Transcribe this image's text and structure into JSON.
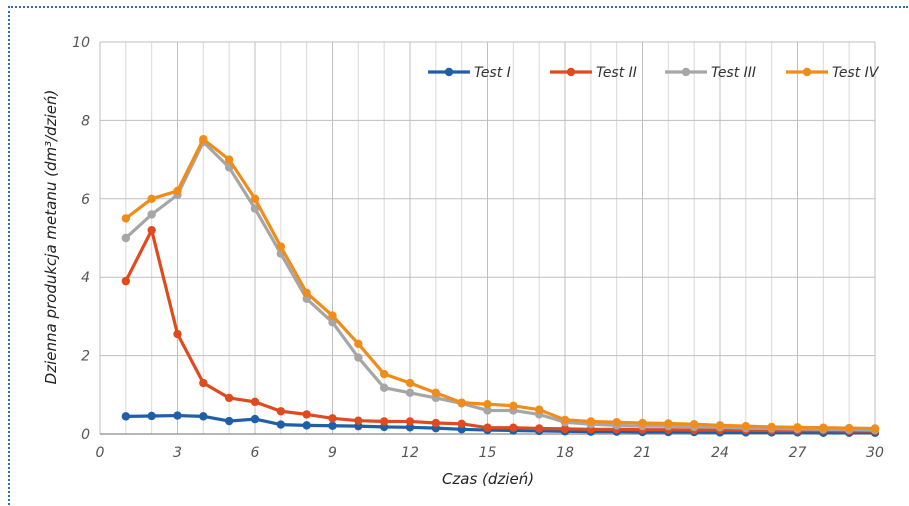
{
  "chart_data": {
    "type": "line",
    "title": "",
    "xlabel": "Czas (dzień)",
    "ylabel": "Dzienna produkcja metanu (dm³/dzień)",
    "xlim": [
      0,
      30
    ],
    "ylim": [
      0,
      10
    ],
    "xticks": [
      "0",
      "3",
      "6",
      "9",
      "12",
      "15",
      "18",
      "21",
      "24",
      "27",
      "30"
    ],
    "yticks": [
      "0",
      "2",
      "4",
      "6",
      "8",
      "10"
    ],
    "grid": true,
    "legend_position": "top-right",
    "x": [
      1,
      2,
      3,
      4,
      5,
      6,
      7,
      8,
      9,
      10,
      11,
      12,
      13,
      14,
      15,
      16,
      17,
      18,
      19,
      20,
      21,
      22,
      23,
      24,
      25,
      26,
      27,
      28,
      29,
      30
    ],
    "series": [
      {
        "name": "Test I",
        "color": "#1f5fa8",
        "values": [
          0.45,
          0.46,
          0.47,
          0.45,
          0.33,
          0.38,
          0.24,
          0.22,
          0.21,
          0.2,
          0.18,
          0.17,
          0.15,
          0.12,
          0.1,
          0.09,
          0.08,
          0.07,
          0.06,
          0.06,
          0.05,
          0.05,
          0.05,
          0.04,
          0.04,
          0.04,
          0.04,
          0.03,
          0.03,
          0.03
        ]
      },
      {
        "name": "Test II",
        "color": "#e04a1f",
        "values": [
          3.9,
          5.2,
          2.55,
          1.3,
          0.92,
          0.82,
          0.58,
          0.5,
          0.4,
          0.34,
          0.32,
          0.32,
          0.28,
          0.26,
          0.16,
          0.16,
          0.14,
          0.13,
          0.12,
          0.12,
          0.11,
          0.11,
          0.1,
          0.1,
          0.1,
          0.09,
          0.09,
          0.09,
          0.08,
          0.08
        ]
      },
      {
        "name": "Test III",
        "color": "#a6a6a6",
        "values": [
          5.0,
          5.6,
          6.1,
          7.45,
          6.8,
          5.75,
          4.6,
          3.45,
          2.85,
          1.95,
          1.18,
          1.05,
          0.92,
          0.78,
          0.6,
          0.6,
          0.5,
          0.3,
          0.25,
          0.22,
          0.2,
          0.2,
          0.18,
          0.17,
          0.15,
          0.14,
          0.13,
          0.12,
          0.11,
          0.1
        ]
      },
      {
        "name": "Test IV",
        "color": "#f08c1a",
        "values": [
          5.5,
          6.0,
          6.2,
          7.52,
          7.0,
          6.0,
          4.78,
          3.6,
          3.02,
          2.3,
          1.53,
          1.3,
          1.05,
          0.8,
          0.76,
          0.72,
          0.62,
          0.36,
          0.32,
          0.3,
          0.28,
          0.27,
          0.25,
          0.22,
          0.2,
          0.18,
          0.17,
          0.16,
          0.15,
          0.14
        ]
      }
    ]
  }
}
